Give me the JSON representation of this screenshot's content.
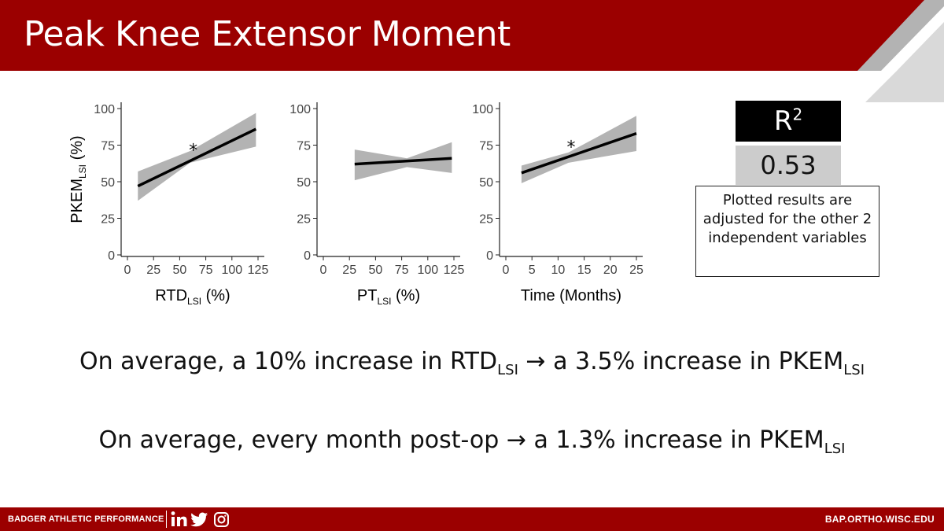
{
  "header": {
    "title": "Peak Knee Extensor Moment"
  },
  "r2": {
    "label": "R",
    "superscript": "2",
    "value": "0.53"
  },
  "note": {
    "text": "Plotted results are adjusted for the other 2 independent variables"
  },
  "statements": [
    {
      "prefix": "On average, a 10% increase in RTD",
      "sub1": "LSI",
      "arrow": "→",
      "suffix": " a 3.5% increase in PKEM",
      "sub2": "LSI"
    },
    {
      "prefix": "On average, every month post-op ",
      "arrow": "→",
      "suffix": " a 1.3% increase in PKEM",
      "sub2": "LSI"
    }
  ],
  "footer": {
    "brand": "BADGER ATHLETIC PERFORMANCE",
    "url": "BAP.ORTHO.WISC.EDU",
    "social": [
      "linkedin-icon",
      "twitter-icon",
      "instagram-icon"
    ]
  },
  "colors": {
    "brand_red": "#9b0000",
    "band_gray": "#b3b3b3",
    "line": "#000000"
  },
  "chart_data": [
    {
      "type": "line",
      "title": "",
      "xlabel": "RTD",
      "xlabel_sub": "LSI",
      "xlabel_suffix": " (%)",
      "ylabel": "PKEM",
      "ylabel_sub": "LSI",
      "ylabel_suffix": " (%)",
      "xlim": [
        0,
        125
      ],
      "ylim": [
        0,
        100
      ],
      "xticks": [
        0,
        25,
        50,
        75,
        100,
        125
      ],
      "yticks": [
        0,
        25,
        50,
        75,
        100
      ],
      "line": {
        "x": [
          10,
          123
        ],
        "y": [
          47,
          86
        ]
      },
      "ci_band": {
        "x": [
          10,
          60,
          123
        ],
        "upper": [
          57,
          71,
          97
        ],
        "lower": [
          37,
          63,
          74
        ]
      },
      "annotation": {
        "text": "*",
        "x": 63,
        "y": 74
      },
      "grid": false
    },
    {
      "type": "line",
      "title": "",
      "xlabel": "PT",
      "xlabel_sub": "LSI",
      "xlabel_suffix": " (%)",
      "xlim": [
        0,
        125
      ],
      "ylim": [
        0,
        100
      ],
      "xticks": [
        0,
        25,
        50,
        75,
        100,
        125
      ],
      "yticks": [
        0,
        25,
        50,
        75,
        100
      ],
      "line": {
        "x": [
          30,
          123
        ],
        "y": [
          62,
          66
        ]
      },
      "ci_band": {
        "x": [
          30,
          80,
          123
        ],
        "upper": [
          72,
          66,
          77
        ],
        "lower": [
          51,
          60,
          56
        ]
      },
      "grid": false
    },
    {
      "type": "line",
      "title": "",
      "xlabel": "Time (Months)",
      "xlabel_sub": "",
      "xlabel_suffix": "",
      "xlim": [
        0,
        25
      ],
      "ylim": [
        0,
        100
      ],
      "xticks": [
        0,
        5,
        10,
        15,
        20,
        25
      ],
      "yticks": [
        0,
        25,
        50,
        75,
        100
      ],
      "line": {
        "x": [
          3,
          25
        ],
        "y": [
          56,
          83
        ]
      },
      "ci_band": {
        "x": [
          3,
          12,
          25
        ],
        "upper": [
          61,
          70,
          95
        ],
        "lower": [
          49,
          63,
          71
        ]
      },
      "annotation": {
        "text": "*",
        "x": 12.5,
        "y": 76
      },
      "grid": false
    }
  ]
}
